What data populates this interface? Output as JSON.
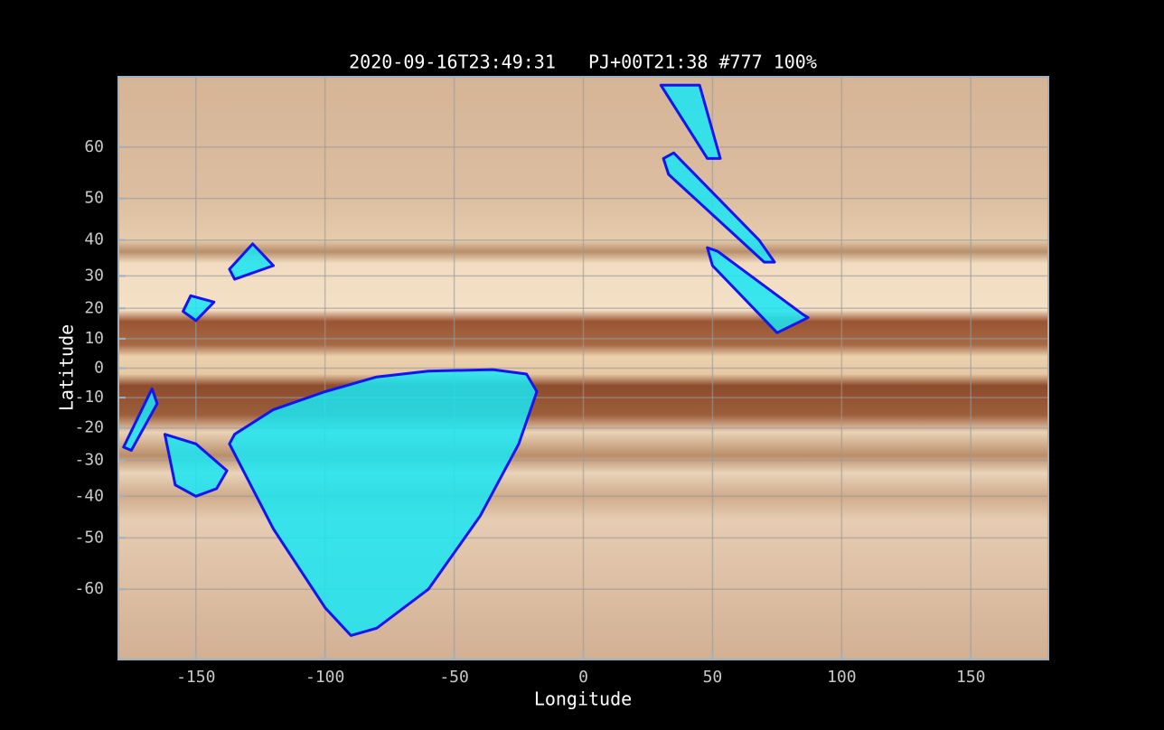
{
  "chart_data": {
    "type": "polygon",
    "title": "2020-09-16T23:49:31   PJ+00T21:38 #777 100%",
    "x_label": "Longitude",
    "y_label": "Latitude",
    "xlim": [
      -180,
      180
    ],
    "ylim": [
      -70,
      70
    ],
    "yscale": "mercator",
    "xticks": [
      -150,
      -100,
      -50,
      0,
      50,
      100,
      150
    ],
    "yticks": [
      60,
      50,
      40,
      30,
      20,
      10,
      0,
      -10,
      -20,
      -30,
      -40,
      -50,
      -60
    ],
    "grid": true,
    "fill_color": "#19e6f5",
    "edge_color": "#1414f0",
    "series": [
      {
        "lon": [
          -135,
          -120,
          -100,
          -80,
          -60,
          -35,
          -22,
          -18,
          -25,
          -40,
          -60,
          -80,
          -90,
          -100,
          -120,
          -137
        ],
        "lat": [
          -22,
          -14,
          -8,
          -3,
          -1,
          -0.5,
          -2,
          -8,
          -25,
          -45,
          -60,
          -66,
          -67,
          -63,
          -48,
          -25
        ]
      },
      {
        "lon": [
          30,
          45,
          53,
          48
        ],
        "lat": [
          69,
          69,
          58,
          58
        ]
      },
      {
        "lon": [
          31,
          35,
          68,
          74,
          70,
          33
        ],
        "lat": [
          58,
          59,
          40,
          34,
          34,
          55
        ]
      },
      {
        "lon": [
          48,
          52,
          85,
          87,
          75,
          50
        ],
        "lat": [
          38,
          37,
          18,
          17,
          12,
          33
        ]
      },
      {
        "lon": [
          -128,
          -120,
          -135,
          -137
        ],
        "lat": [
          39,
          33,
          29,
          32
        ]
      },
      {
        "lon": [
          -152,
          -143,
          -150,
          -155
        ],
        "lat": [
          24,
          22,
          16,
          19
        ]
      },
      {
        "lon": [
          -167,
          -165,
          -175,
          -178
        ],
        "lat": [
          -7,
          -12,
          -27,
          -26
        ]
      },
      {
        "lon": [
          -162,
          -150,
          -138,
          -142,
          -150,
          -158
        ],
        "lat": [
          -22,
          -25,
          -33,
          -38,
          -40,
          -37
        ]
      }
    ]
  }
}
